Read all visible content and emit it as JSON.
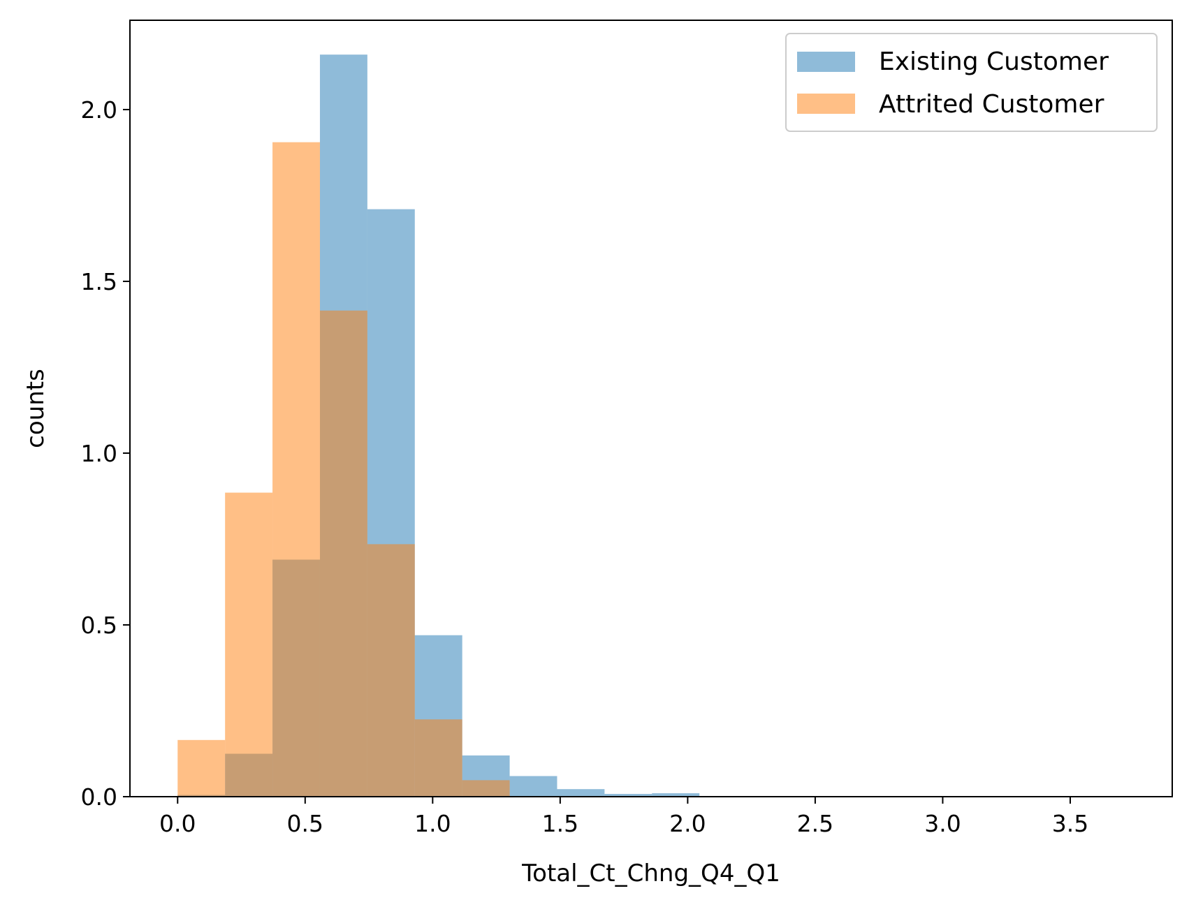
{
  "chart_data": {
    "type": "bar",
    "xlabel": "Total_Ct_Chng_Q4_Q1",
    "ylabel": "counts",
    "xlim": [
      -0.187,
      3.9
    ],
    "ylim": [
      0,
      2.26
    ],
    "xticks": [
      0.0,
      0.5,
      1.0,
      1.5,
      2.0,
      2.5,
      3.0,
      3.5
    ],
    "xtick_labels": [
      "0.0",
      "0.5",
      "1.0",
      "1.5",
      "2.0",
      "2.5",
      "3.0",
      "3.5"
    ],
    "yticks": [
      0.0,
      0.5,
      1.0,
      1.5,
      2.0
    ],
    "ytick_labels": [
      "0.0",
      "0.5",
      "1.0",
      "1.5",
      "2.0"
    ],
    "grid": false,
    "legend_position": "top-right",
    "bin_edges": [
      0.0,
      0.186,
      0.372,
      0.558,
      0.744,
      0.93,
      1.116,
      1.302,
      1.488,
      1.674,
      1.86,
      2.046,
      2.232,
      2.418,
      2.604,
      2.79,
      2.976,
      3.162,
      3.348,
      3.534,
      3.72
    ],
    "series": [
      {
        "name": "Existing Customer",
        "color": "#1f77b4",
        "alpha": 0.5,
        "values": [
          0.005,
          0.125,
          0.69,
          2.16,
          1.71,
          0.47,
          0.12,
          0.06,
          0.022,
          0.008,
          0.01,
          0.002,
          0.001,
          0,
          0,
          0,
          0,
          0,
          0,
          0
        ]
      },
      {
        "name": "Attrited Customer",
        "color": "#ff7f0e",
        "alpha": 0.5,
        "values": [
          0.165,
          0.885,
          1.905,
          1.415,
          0.735,
          0.225,
          0.048,
          0,
          0,
          0,
          0,
          0,
          0,
          0,
          0,
          0,
          0,
          0,
          0,
          0
        ]
      }
    ]
  }
}
